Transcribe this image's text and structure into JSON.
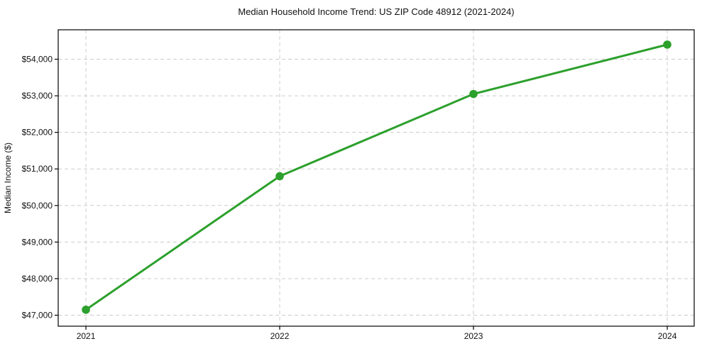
{
  "page": {
    "background": "#ffffff"
  },
  "chart_data": {
    "type": "line",
    "title": "Median Household Income Trend: US ZIP Code 48912 (2021-2024)",
    "xlabel": "",
    "ylabel": "Median Income ($)",
    "categories": [
      "2021",
      "2022",
      "2023",
      "2024"
    ],
    "series": [
      {
        "name": "Median Household Income",
        "values": [
          47150,
          50800,
          53050,
          54400
        ]
      }
    ],
    "y_ticks": {
      "values": [
        47000,
        48000,
        49000,
        50000,
        51000,
        52000,
        53000,
        54000
      ],
      "labels": [
        "$47,000",
        "$48,000",
        "$49,000",
        "$50,000",
        "$51,000",
        "$52,000",
        "$53,000",
        "$54,000"
      ]
    },
    "xlim": [
      2020.857,
      2024.139
    ],
    "ylim": [
      46700,
      54805
    ],
    "grid": true,
    "grid_style": "dashed",
    "legend": "none",
    "line_color": "#2ca02c",
    "marker_color": "#2ca02c",
    "grid_color": "#cccccc",
    "axis_color": "#000000",
    "text_color": "#111111"
  }
}
